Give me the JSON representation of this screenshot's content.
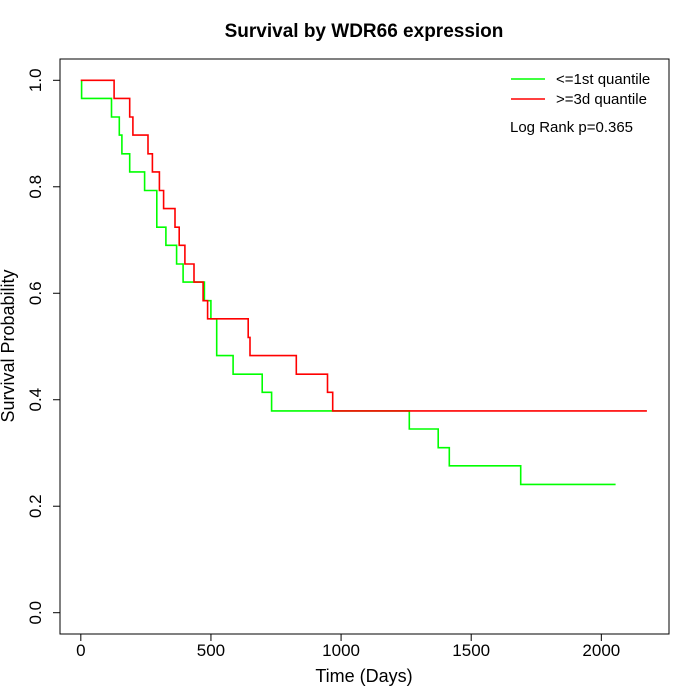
{
  "chart_data": {
    "type": "line",
    "subtype": "kaplan-meier step",
    "title": "Survival by WDR66 expression",
    "xlabel": "Time (Days)",
    "ylabel": "Survival Probability",
    "xlim": [
      -80,
      2260
    ],
    "ylim": [
      -0.04,
      1.04
    ],
    "xticks": [
      0,
      500,
      1000,
      1500,
      2000
    ],
    "xtick_labels": [
      "0",
      "500",
      "1000",
      "1500",
      "2000"
    ],
    "yticks": [
      0.0,
      0.2,
      0.4,
      0.6,
      0.8,
      1.0
    ],
    "ytick_labels": [
      "0.0",
      "0.2",
      "0.4",
      "0.6",
      "0.8",
      "1.0"
    ],
    "grid": false,
    "legend_position": "top-right",
    "annotation": "Log Rank p=0.365",
    "series": [
      {
        "name": "<=1st quantile",
        "color": "#00ff00",
        "x": [
          0,
          3,
          118,
          148,
          158,
          188,
          245,
          292,
          327,
          368,
          393,
          475,
          500,
          522,
          585,
          697,
          733,
          1262,
          1373,
          1416,
          1690,
          2055
        ],
        "y": [
          1.0,
          0.966,
          0.931,
          0.897,
          0.862,
          0.828,
          0.793,
          0.724,
          0.69,
          0.655,
          0.621,
          0.586,
          0.552,
          0.483,
          0.448,
          0.414,
          0.379,
          0.345,
          0.31,
          0.276,
          0.241,
          0.241
        ]
      },
      {
        "name": ">=3d quantile",
        "color": "#ff0000",
        "x": [
          0,
          128,
          188,
          200,
          258,
          275,
          302,
          318,
          362,
          378,
          400,
          435,
          470,
          487,
          643,
          650,
          828,
          948,
          968,
          2175
        ],
        "y": [
          1.0,
          0.966,
          0.931,
          0.897,
          0.862,
          0.828,
          0.793,
          0.759,
          0.724,
          0.69,
          0.655,
          0.621,
          0.586,
          0.552,
          0.517,
          0.483,
          0.448,
          0.414,
          0.379,
          0.379
        ]
      }
    ]
  }
}
